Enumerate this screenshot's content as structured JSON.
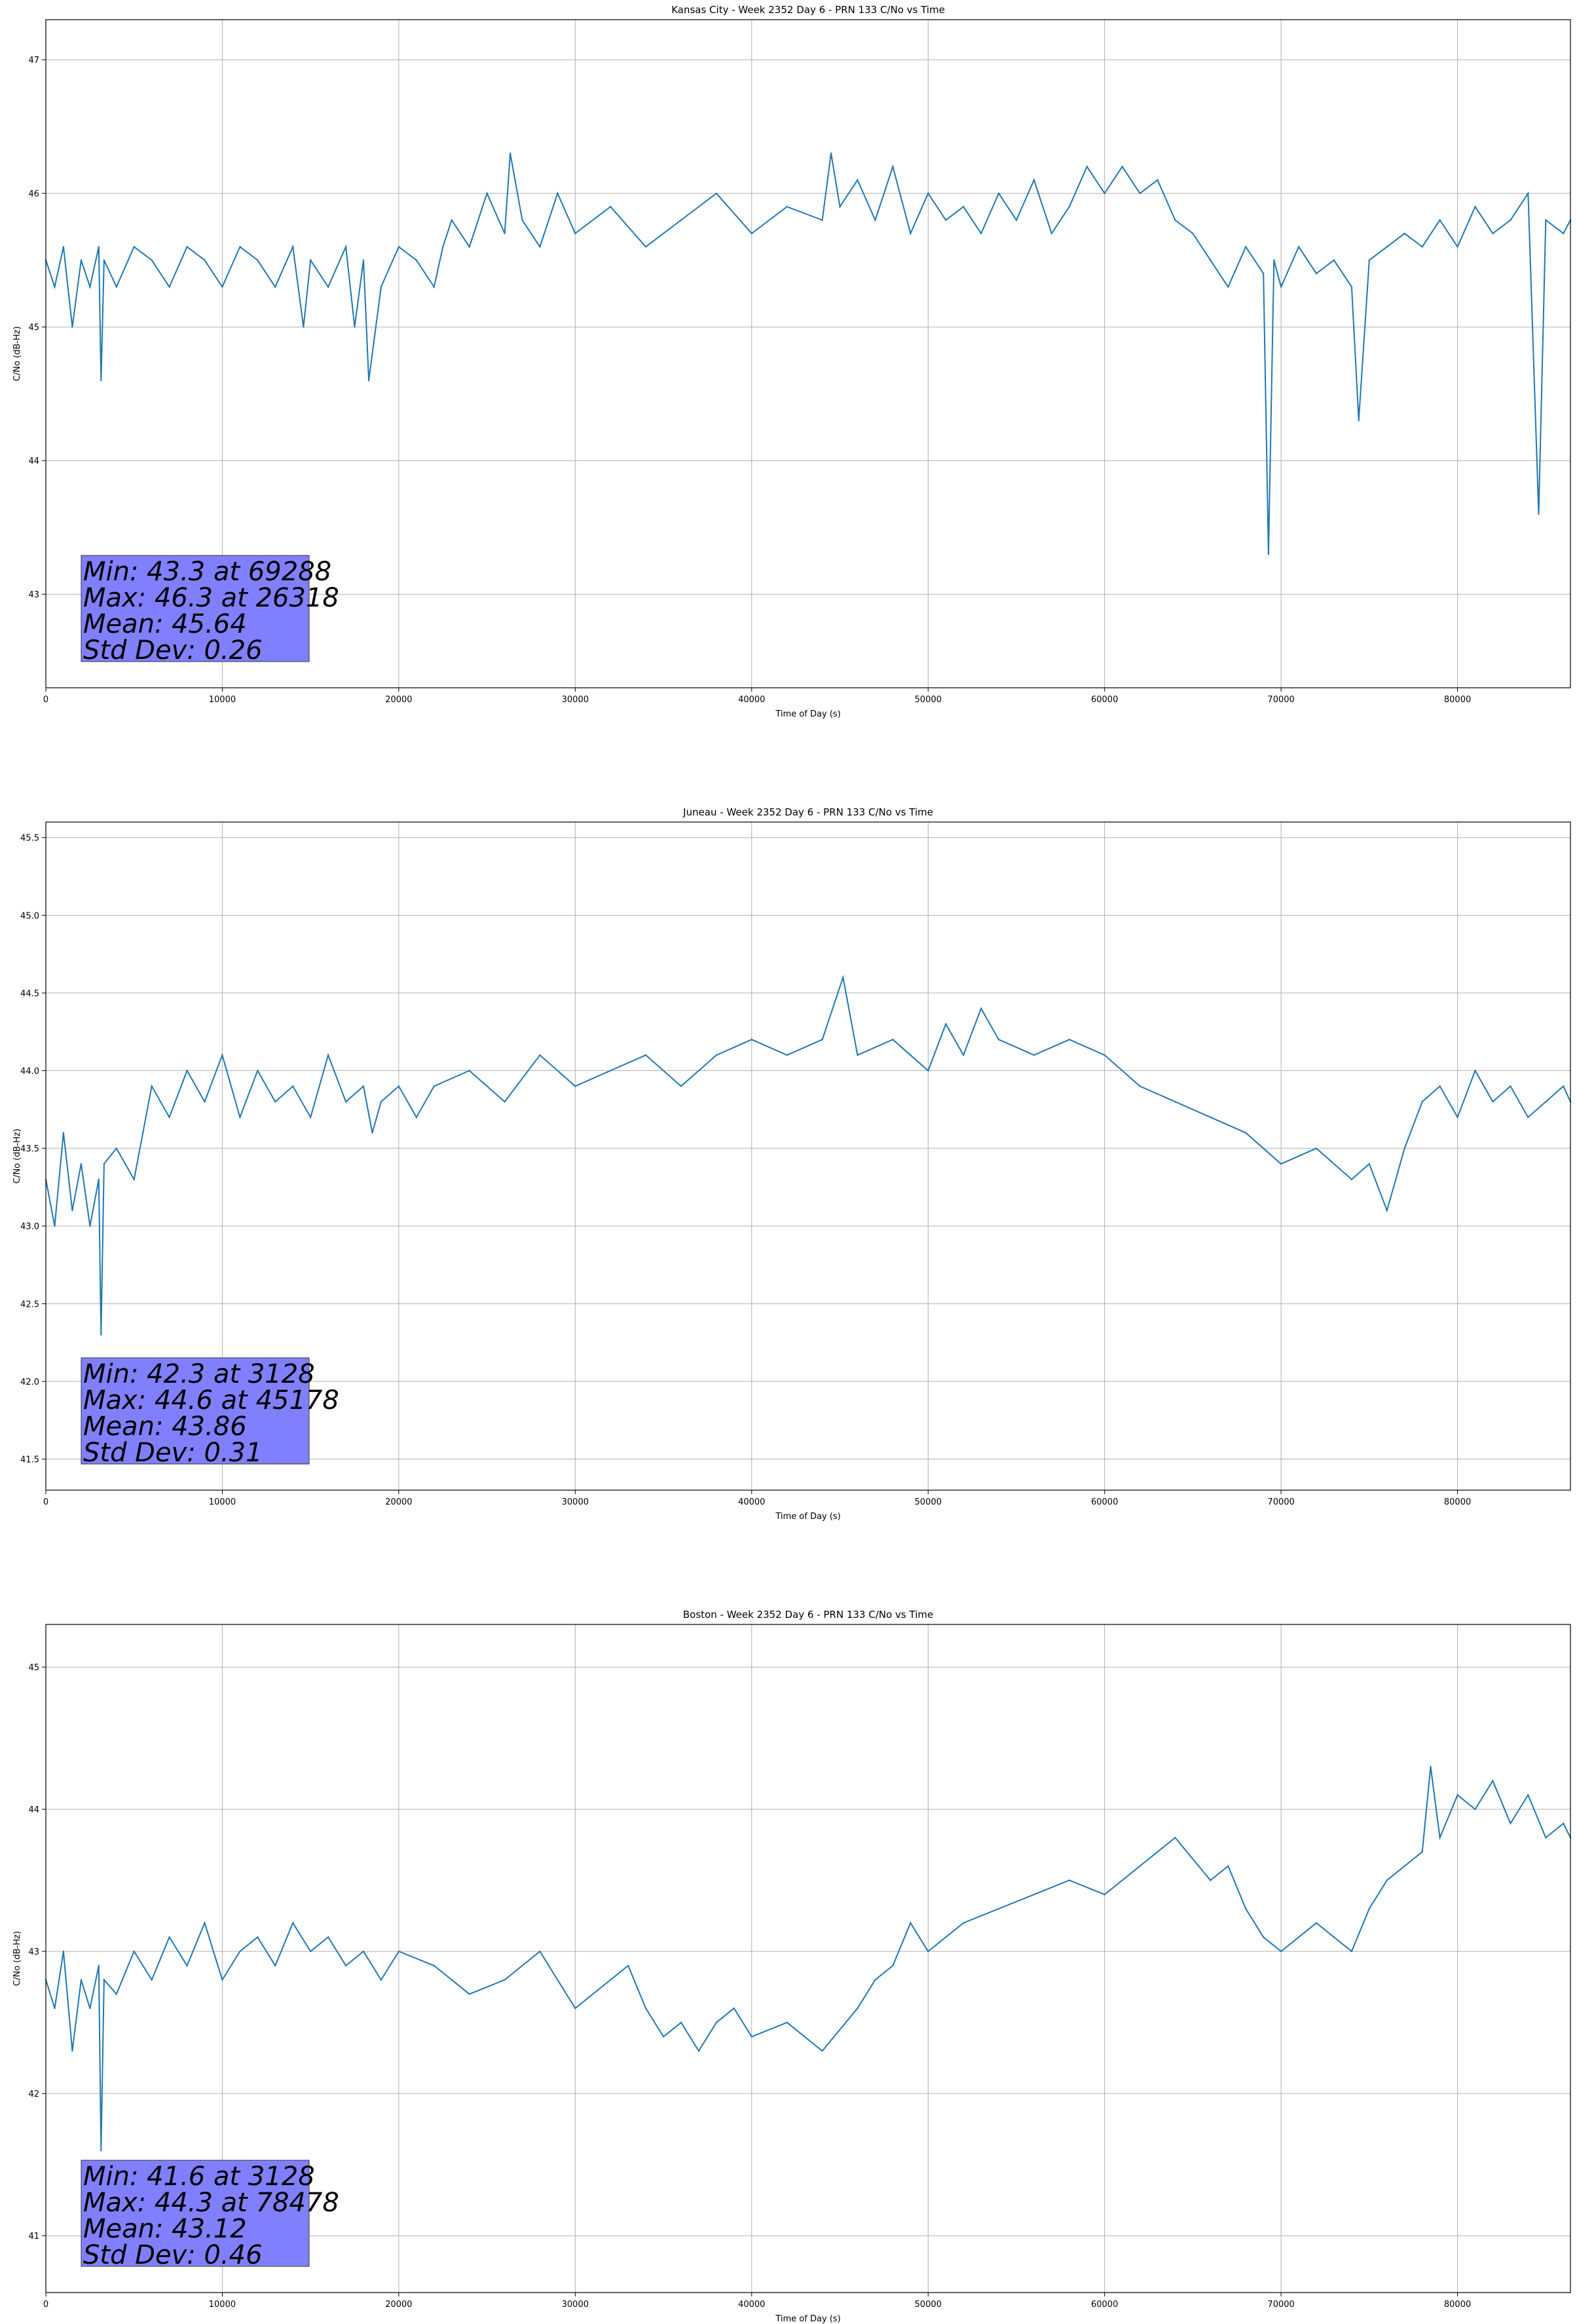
{
  "colors": {
    "line": "#1f77b4",
    "grid": "#b0b0b0",
    "stats_box": "#8080ff",
    "axes": "#000000"
  },
  "chart_data": [
    {
      "type": "line",
      "title": "Kansas City - Week 2352 Day 6 - PRN 133 C/No vs Time",
      "xlabel": "Time of Day (s)",
      "ylabel": "C/No (dB-Hz)",
      "xlim": [
        0,
        86400
      ],
      "ylim": [
        42.3,
        47.3
      ],
      "grid": true,
      "xticks": [
        0,
        10000,
        20000,
        30000,
        40000,
        50000,
        60000,
        70000,
        80000
      ],
      "xtick_labels": [
        "0",
        "10000",
        "20000",
        "30000",
        "40000",
        "50000",
        "60000",
        "70000",
        "80000"
      ],
      "yticks": [
        43,
        44,
        45,
        46,
        47
      ],
      "ytick_labels": [
        "43",
        "44",
        "45",
        "46",
        "47"
      ],
      "series": [
        {
          "name": "C/No",
          "x": [
            0,
            500,
            1000,
            1500,
            2000,
            2500,
            3000,
            3128,
            3300,
            4000,
            5000,
            6000,
            7000,
            8000,
            9000,
            10000,
            11000,
            12000,
            13000,
            14000,
            14600,
            15000,
            16000,
            17000,
            17500,
            18000,
            18300,
            19000,
            20000,
            21000,
            22000,
            22500,
            23000,
            24000,
            25000,
            26000,
            26318,
            27000,
            28000,
            29000,
            30000,
            32000,
            34000,
            36000,
            38000,
            40000,
            42000,
            44000,
            44500,
            45000,
            46000,
            47000,
            48000,
            49000,
            50000,
            51000,
            52000,
            53000,
            54000,
            55000,
            56000,
            57000,
            58000,
            59000,
            60000,
            61000,
            62000,
            63000,
            64000,
            65000,
            66000,
            67000,
            68000,
            69000,
            69288,
            69600,
            70000,
            71000,
            72000,
            73000,
            74000,
            74400,
            75000,
            76000,
            77000,
            78000,
            79000,
            80000,
            81000,
            82000,
            83000,
            84000,
            84600,
            85000,
            86000,
            86400
          ],
          "y": [
            45.5,
            45.3,
            45.6,
            45.0,
            45.5,
            45.3,
            45.6,
            44.6,
            45.5,
            45.3,
            45.6,
            45.5,
            45.3,
            45.6,
            45.5,
            45.3,
            45.6,
            45.5,
            45.3,
            45.6,
            45.0,
            45.5,
            45.3,
            45.6,
            45.0,
            45.5,
            44.6,
            45.3,
            45.6,
            45.5,
            45.3,
            45.6,
            45.8,
            45.6,
            46.0,
            45.7,
            46.3,
            45.8,
            45.6,
            46.0,
            45.7,
            45.9,
            45.6,
            45.8,
            46.0,
            45.7,
            45.9,
            45.8,
            46.3,
            45.9,
            46.1,
            45.8,
            46.2,
            45.7,
            46.0,
            45.8,
            45.9,
            45.7,
            46.0,
            45.8,
            46.1,
            45.7,
            45.9,
            46.2,
            46.0,
            46.2,
            46.0,
            46.1,
            45.8,
            45.7,
            45.5,
            45.3,
            45.6,
            45.4,
            43.3,
            45.5,
            45.3,
            45.6,
            45.4,
            45.5,
            45.3,
            44.3,
            45.5,
            45.6,
            45.7,
            45.6,
            45.8,
            45.6,
            45.9,
            45.7,
            45.8,
            46.0,
            43.6,
            45.8,
            45.7,
            45.8
          ]
        }
      ],
      "annotation": [
        "Min: 43.3 at 69288",
        "Max: 46.3 at 26318",
        "Mean: 45.64",
        "Std Dev: 0.26"
      ]
    },
    {
      "type": "line",
      "title": "Juneau - Week 2352 Day 6 - PRN 133 C/No vs Time",
      "xlabel": "Time of Day (s)",
      "ylabel": "C/No (dB-Hz)",
      "xlim": [
        0,
        86400
      ],
      "ylim": [
        41.3,
        45.6
      ],
      "grid": true,
      "xticks": [
        0,
        10000,
        20000,
        30000,
        40000,
        50000,
        60000,
        70000,
        80000
      ],
      "xtick_labels": [
        "0",
        "10000",
        "20000",
        "30000",
        "40000",
        "50000",
        "60000",
        "70000",
        "80000"
      ],
      "yticks": [
        41.5,
        42.0,
        42.5,
        43.0,
        43.5,
        44.0,
        44.5,
        45.0,
        45.5
      ],
      "ytick_labels": [
        "41.5",
        "42.0",
        "42.5",
        "43.0",
        "43.5",
        "44.0",
        "44.5",
        "45.0",
        "45.5"
      ],
      "series": [
        {
          "name": "C/No",
          "x": [
            0,
            500,
            1000,
            1500,
            2000,
            2500,
            3000,
            3128,
            3300,
            4000,
            5000,
            5500,
            6000,
            7000,
            8000,
            9000,
            10000,
            11000,
            12000,
            13000,
            14000,
            15000,
            16000,
            17000,
            18000,
            18500,
            19000,
            20000,
            21000,
            22000,
            24000,
            26000,
            28000,
            30000,
            32000,
            34000,
            36000,
            38000,
            40000,
            42000,
            44000,
            45178,
            46000,
            48000,
            50000,
            51000,
            52000,
            53000,
            54000,
            56000,
            58000,
            60000,
            62000,
            64000,
            66000,
            68000,
            70000,
            72000,
            74000,
            75000,
            76000,
            77000,
            78000,
            79000,
            80000,
            81000,
            82000,
            83000,
            84000,
            85000,
            86000,
            86400
          ],
          "y": [
            43.3,
            43.0,
            43.6,
            43.1,
            43.4,
            43.0,
            43.3,
            42.3,
            43.4,
            43.5,
            43.3,
            43.6,
            43.9,
            43.7,
            44.0,
            43.8,
            44.1,
            43.7,
            44.0,
            43.8,
            43.9,
            43.7,
            44.1,
            43.8,
            43.9,
            43.6,
            43.8,
            43.9,
            43.7,
            43.9,
            44.0,
            43.8,
            44.1,
            43.9,
            44.0,
            44.1,
            43.9,
            44.1,
            44.2,
            44.1,
            44.2,
            44.6,
            44.1,
            44.2,
            44.0,
            44.3,
            44.1,
            44.4,
            44.2,
            44.1,
            44.2,
            44.1,
            43.9,
            43.8,
            43.7,
            43.6,
            43.4,
            43.5,
            43.3,
            43.4,
            43.1,
            43.5,
            43.8,
            43.9,
            43.7,
            44.0,
            43.8,
            43.9,
            43.7,
            43.8,
            43.9,
            43.8
          ]
        }
      ],
      "annotation": [
        "Min: 42.3 at 3128",
        "Max: 44.6 at 45178",
        "Mean: 43.86",
        "Std Dev: 0.31"
      ]
    },
    {
      "type": "line",
      "title": "Boston - Week 2352 Day 6 - PRN 133 C/No vs Time",
      "xlabel": "Time of Day (s)",
      "ylabel": "C/No (dB-Hz)",
      "xlim": [
        0,
        86400
      ],
      "ylim": [
        40.6,
        45.3
      ],
      "grid": true,
      "xticks": [
        0,
        10000,
        20000,
        30000,
        40000,
        50000,
        60000,
        70000,
        80000
      ],
      "xtick_labels": [
        "0",
        "10000",
        "20000",
        "30000",
        "40000",
        "50000",
        "60000",
        "70000",
        "80000"
      ],
      "yticks": [
        41,
        42,
        43,
        44,
        45
      ],
      "ytick_labels": [
        "41",
        "42",
        "43",
        "44",
        "45"
      ],
      "series": [
        {
          "name": "C/No",
          "x": [
            0,
            500,
            1000,
            1500,
            2000,
            2500,
            3000,
            3128,
            3300,
            4000,
            5000,
            6000,
            7000,
            8000,
            9000,
            10000,
            11000,
            12000,
            13000,
            14000,
            15000,
            16000,
            17000,
            18000,
            19000,
            20000,
            22000,
            24000,
            26000,
            28000,
            30000,
            32000,
            33000,
            34000,
            35000,
            36000,
            37000,
            38000,
            39000,
            40000,
            42000,
            44000,
            46000,
            47000,
            48000,
            49000,
            50000,
            52000,
            54000,
            56000,
            58000,
            60000,
            62000,
            64000,
            66000,
            67000,
            68000,
            69000,
            70000,
            72000,
            73000,
            74000,
            75000,
            76000,
            78000,
            78478,
            79000,
            80000,
            81000,
            82000,
            83000,
            84000,
            85000,
            86000,
            86400
          ],
          "y": [
            42.8,
            42.6,
            43.0,
            42.3,
            42.8,
            42.6,
            42.9,
            41.6,
            42.8,
            42.7,
            43.0,
            42.8,
            43.1,
            42.9,
            43.2,
            42.8,
            43.0,
            43.1,
            42.9,
            43.2,
            43.0,
            43.1,
            42.9,
            43.0,
            42.8,
            43.0,
            42.9,
            42.7,
            42.8,
            43.0,
            42.6,
            42.8,
            42.9,
            42.6,
            42.4,
            42.5,
            42.3,
            42.5,
            42.6,
            42.4,
            42.5,
            42.3,
            42.6,
            42.8,
            42.9,
            43.2,
            43.0,
            43.2,
            43.3,
            43.4,
            43.5,
            43.4,
            43.6,
            43.8,
            43.5,
            43.6,
            43.3,
            43.1,
            43.0,
            43.2,
            43.1,
            43.0,
            43.3,
            43.5,
            43.7,
            44.3,
            43.8,
            44.1,
            44.0,
            44.2,
            43.9,
            44.1,
            43.8,
            43.9,
            43.8
          ]
        }
      ],
      "annotation": [
        "Min: 41.6 at 3128",
        "Max: 44.3 at 78478",
        "Mean: 43.12",
        "Std Dev: 0.46"
      ]
    }
  ]
}
